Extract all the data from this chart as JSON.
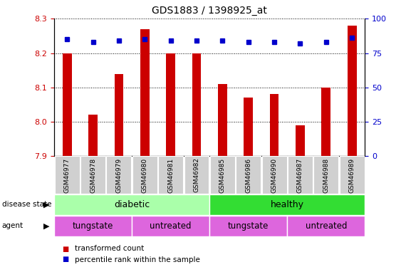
{
  "title": "GDS1883 / 1398925_at",
  "samples": [
    "GSM46977",
    "GSM46978",
    "GSM46979",
    "GSM46980",
    "GSM46981",
    "GSM46982",
    "GSM46985",
    "GSM46986",
    "GSM46990",
    "GSM46987",
    "GSM46988",
    "GSM46989"
  ],
  "transformed_counts": [
    8.2,
    8.02,
    8.14,
    8.27,
    8.2,
    8.2,
    8.11,
    8.07,
    8.08,
    7.99,
    8.1,
    8.28
  ],
  "percentile_ranks": [
    85,
    83,
    84,
    85,
    84,
    84,
    84,
    83,
    83,
    82,
    83,
    86
  ],
  "ylim_left": [
    7.9,
    8.3
  ],
  "ylim_right": [
    0,
    100
  ],
  "yticks_left": [
    7.9,
    8.0,
    8.1,
    8.2,
    8.3
  ],
  "yticks_right": [
    0,
    25,
    50,
    75,
    100
  ],
  "bar_color": "#cc0000",
  "dot_color": "#0000cc",
  "disease_color_diabetic": "#aaffaa",
  "disease_color_healthy": "#33dd33",
  "agent_color": "#dd66dd",
  "agent_color2": "#cc44cc",
  "gray_box": "#d0d0d0",
  "legend_bar_color": "#cc0000",
  "legend_dot_color": "#0000cc"
}
